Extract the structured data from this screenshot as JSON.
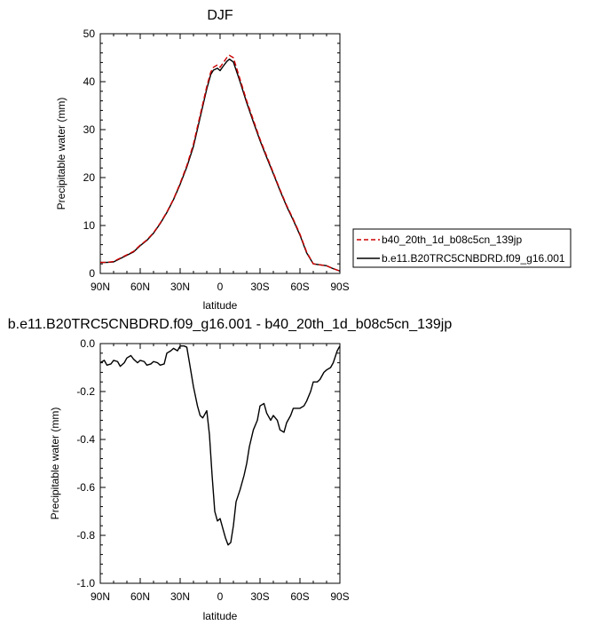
{
  "chart_data": [
    {
      "type": "line",
      "title": "DJF",
      "xlabel": "latitude",
      "ylabel": "Precipitable water (mm)",
      "xlim": [
        90,
        -90
      ],
      "ylim": [
        0,
        50
      ],
      "xticks": [
        90,
        60,
        30,
        0,
        -30,
        -60,
        -90
      ],
      "xtick_labels": [
        "90N",
        "60N",
        "30N",
        "0",
        "30S",
        "60S",
        "90S"
      ],
      "yticks": [
        0,
        10,
        20,
        30,
        40,
        50
      ],
      "ytick_labels": [
        "0",
        "10",
        "20",
        "30",
        "40",
        "50"
      ],
      "legend_position": "right",
      "series": [
        {
          "name": "b40_20th_1d_b08c5cn_139jp",
          "color": "#cc0000",
          "dash": true,
          "x": [
            90,
            85,
            80,
            75,
            70,
            65,
            60,
            55,
            50,
            45,
            40,
            35,
            30,
            25,
            20,
            15,
            10,
            7,
            5,
            2,
            0,
            -2,
            -5,
            -7,
            -10,
            -15,
            -20,
            -25,
            -30,
            -35,
            -40,
            -45,
            -50,
            -55,
            -60,
            -65,
            -70,
            -75,
            -80,
            -85,
            -90
          ],
          "y": [
            2.3,
            2.3,
            2.5,
            3.2,
            3.9,
            4.6,
            5.9,
            7.0,
            8.5,
            10.5,
            12.8,
            15.5,
            18.8,
            22.5,
            27.0,
            33.0,
            39.0,
            42.0,
            43.0,
            43.5,
            43.0,
            43.8,
            45.0,
            45.5,
            45.0,
            40.5,
            36.0,
            32.0,
            28.0,
            24.5,
            21.0,
            17.5,
            14.2,
            11.3,
            8.2,
            4.5,
            2.0,
            1.8,
            1.6,
            1.0,
            0.5
          ]
        },
        {
          "name": "b.e11.B20TRC5CNBDRD.f09_g16.001",
          "color": "#000000",
          "dash": false,
          "x": [
            90,
            85,
            80,
            75,
            70,
            65,
            60,
            55,
            50,
            45,
            40,
            35,
            30,
            25,
            20,
            15,
            10,
            7,
            5,
            2,
            0,
            -2,
            -5,
            -7,
            -10,
            -15,
            -20,
            -25,
            -30,
            -35,
            -40,
            -45,
            -50,
            -55,
            -60,
            -65,
            -70,
            -75,
            -80,
            -85,
            -90
          ],
          "y": [
            2.3,
            2.3,
            2.4,
            3.1,
            3.8,
            4.5,
            5.8,
            6.9,
            8.4,
            10.4,
            12.7,
            15.4,
            18.6,
            22.2,
            26.5,
            32.5,
            38.5,
            41.5,
            42.4,
            42.8,
            42.3,
            43.1,
            44.2,
            44.7,
            44.1,
            40.0,
            35.6,
            31.6,
            27.7,
            24.2,
            20.8,
            17.3,
            14.0,
            11.1,
            8.0,
            4.3,
            2.0,
            1.8,
            1.6,
            1.0,
            0.5
          ]
        }
      ]
    },
    {
      "type": "line",
      "title": "b.e11.B20TRC5CNBDRD.f09_g16.001 - b40_20th_1d_b08c5cn_139jp",
      "xlabel": "latitude",
      "ylabel": "Precipitable water (mm)",
      "xlim": [
        90,
        -90
      ],
      "ylim": [
        -1.0,
        0.0
      ],
      "xticks": [
        90,
        60,
        30,
        0,
        -30,
        -60,
        -90
      ],
      "xtick_labels": [
        "90N",
        "60N",
        "30N",
        "0",
        "30S",
        "60S",
        "90S"
      ],
      "yticks": [
        0.0,
        -0.2,
        -0.4,
        -0.6,
        -0.8,
        -1.0
      ],
      "ytick_labels": [
        "0.0",
        "-0.2",
        "-0.4",
        "-0.6",
        "-0.8",
        "-1.0"
      ],
      "series": [
        {
          "color": "#000000",
          "dash": false,
          "x": [
            90,
            87,
            85,
            82,
            80,
            77,
            75,
            72,
            70,
            67,
            65,
            62,
            60,
            57,
            55,
            52,
            50,
            47,
            45,
            42,
            40,
            37,
            35,
            32,
            30,
            27,
            25,
            23,
            20,
            17,
            15,
            13,
            10,
            8,
            6,
            4,
            2,
            0,
            -2,
            -4,
            -6,
            -8,
            -10,
            -12,
            -15,
            -18,
            -20,
            -22,
            -25,
            -28,
            -30,
            -33,
            -35,
            -38,
            -40,
            -43,
            -45,
            -48,
            -50,
            -53,
            -55,
            -58,
            -60,
            -63,
            -65,
            -68,
            -70,
            -73,
            -75,
            -78,
            -80,
            -83,
            -85,
            -88,
            -90
          ],
          "y": [
            -0.08,
            -0.07,
            -0.09,
            -0.085,
            -0.07,
            -0.075,
            -0.095,
            -0.08,
            -0.06,
            -0.05,
            -0.065,
            -0.08,
            -0.07,
            -0.075,
            -0.09,
            -0.085,
            -0.075,
            -0.08,
            -0.09,
            -0.085,
            -0.04,
            -0.03,
            -0.02,
            -0.03,
            -0.01,
            -0.01,
            -0.015,
            -0.08,
            -0.18,
            -0.26,
            -0.3,
            -0.31,
            -0.28,
            -0.38,
            -0.55,
            -0.7,
            -0.74,
            -0.73,
            -0.77,
            -0.81,
            -0.84,
            -0.83,
            -0.76,
            -0.66,
            -0.61,
            -0.55,
            -0.5,
            -0.43,
            -0.36,
            -0.32,
            -0.26,
            -0.25,
            -0.29,
            -0.32,
            -0.3,
            -0.32,
            -0.36,
            -0.37,
            -0.33,
            -0.3,
            -0.27,
            -0.27,
            -0.27,
            -0.26,
            -0.24,
            -0.2,
            -0.16,
            -0.16,
            -0.15,
            -0.12,
            -0.11,
            -0.1,
            -0.08,
            -0.03,
            -0.01
          ]
        }
      ]
    }
  ]
}
